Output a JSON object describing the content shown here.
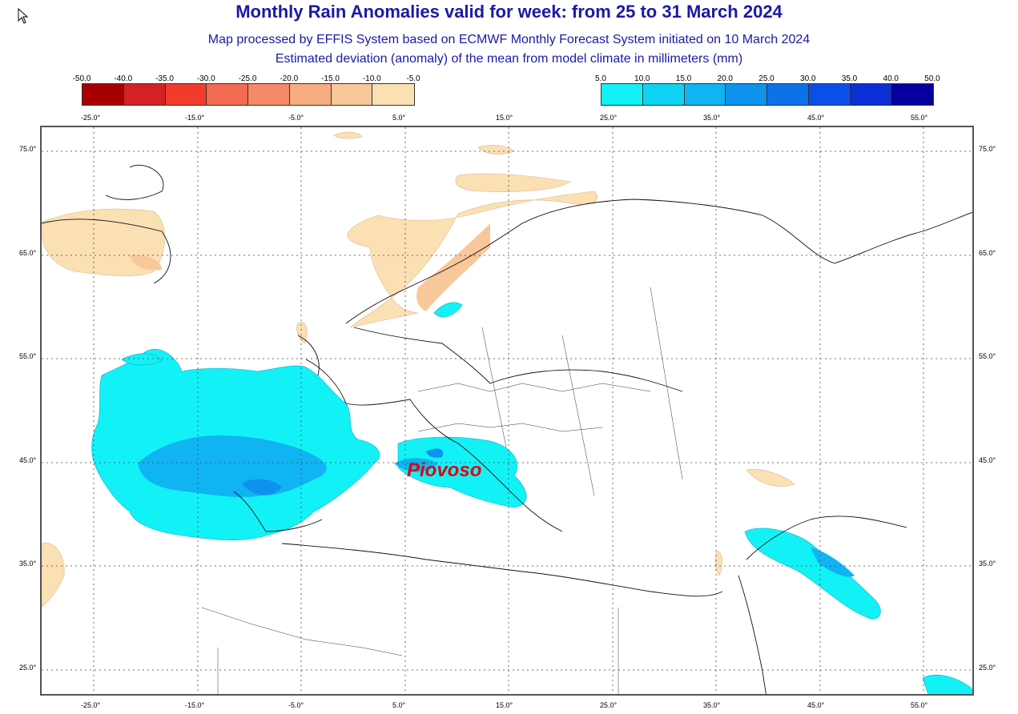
{
  "header": {
    "title": "Monthly Rain Anomalies valid for week: from 25 to 31 March 2024",
    "subtitle1": "Map processed by EFFIS System based on ECMWF Monthly Forecast System initiated on 10 March 2024",
    "subtitle2": "Estimated deviation (anomaly) of the mean from model climate in millimeters (mm)"
  },
  "legend": {
    "dry": {
      "labels": [
        "-50.0",
        "-40.0",
        "-35.0",
        "-30.0",
        "-25.0",
        "-20.0",
        "-15.0",
        "-10.0",
        "-5.0"
      ],
      "colors": [
        "#a80000",
        "#d42121",
        "#f23b2b",
        "#f46a4e",
        "#f58a66",
        "#f7ab80",
        "#f8c79a",
        "#fbe0b4"
      ]
    },
    "wet": {
      "labels": [
        "5.0",
        "10.0",
        "15.0",
        "20.0",
        "25.0",
        "30.0",
        "35.0",
        "40.0",
        "50.0"
      ],
      "colors": [
        "#12f2f6",
        "#0fd2f3",
        "#10b4f2",
        "#0d92ee",
        "#0b72ea",
        "#0c4eea",
        "#0b2ed6",
        "#05009e"
      ]
    }
  },
  "axes": {
    "lon_labels": [
      "-25.0°",
      "-15.0°",
      "-5.0°",
      "5.0°",
      "15.0°",
      "25.0°",
      "35.0°",
      "45.0°",
      "55.0°"
    ],
    "lat_labels": [
      "75.0°",
      "65.0°",
      "55.0°",
      "45.0°",
      "35.0°",
      "25.0°"
    ]
  },
  "annotation": {
    "label": "Piovoso"
  }
}
